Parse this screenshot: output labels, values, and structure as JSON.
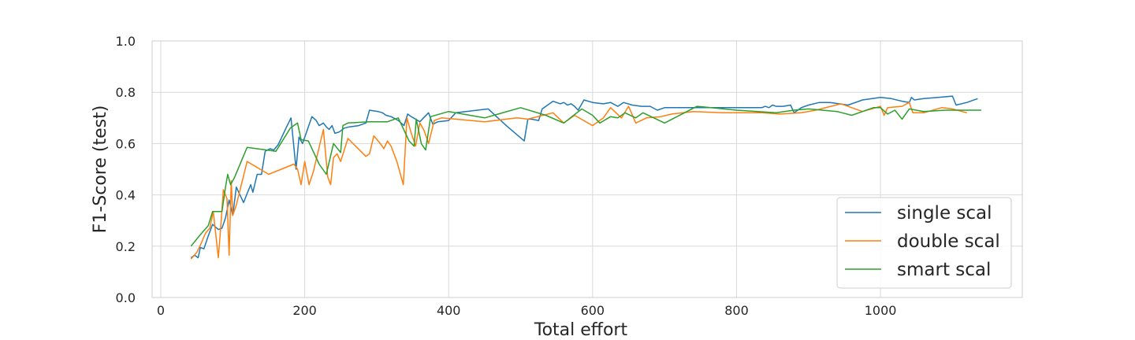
{
  "chart_data": {
    "type": "line",
    "title": "",
    "xlabel": "Total effort",
    "ylabel": "F1-Score (test)",
    "xlim": [
      -12,
      1197
    ],
    "ylim": [
      0.0,
      1.0
    ],
    "xticks": [
      0,
      200,
      400,
      600,
      800,
      1000
    ],
    "yticks": [
      0.0,
      0.2,
      0.4,
      0.6,
      0.8,
      1.0
    ],
    "xtick_labels": [
      "0",
      "200",
      "400",
      "600",
      "800",
      "1000"
    ],
    "ytick_labels": [
      "0.0",
      "0.2",
      "0.4",
      "0.6",
      "0.8",
      "1.0"
    ],
    "grid": true,
    "legend_position": "lower-right",
    "series": [
      {
        "name": "single scal",
        "color": "#1f77b4",
        "points": [
          [
            42,
            0.155
          ],
          [
            47,
            0.165
          ],
          [
            52,
            0.155
          ],
          [
            55,
            0.195
          ],
          [
            60,
            0.19
          ],
          [
            66,
            0.24
          ],
          [
            72,
            0.285
          ],
          [
            76,
            0.275
          ],
          [
            80,
            0.265
          ],
          [
            85,
            0.27
          ],
          [
            90,
            0.31
          ],
          [
            95,
            0.38
          ],
          [
            100,
            0.32
          ],
          [
            105,
            0.43
          ],
          [
            110,
            0.4
          ],
          [
            115,
            0.37
          ],
          [
            120,
            0.405
          ],
          [
            125,
            0.44
          ],
          [
            128,
            0.41
          ],
          [
            134,
            0.48
          ],
          [
            140,
            0.48
          ],
          [
            145,
            0.57
          ],
          [
            152,
            0.58
          ],
          [
            157,
            0.575
          ],
          [
            163,
            0.595
          ],
          [
            169,
            0.63
          ],
          [
            174,
            0.66
          ],
          [
            181,
            0.7
          ],
          [
            188,
            0.5
          ],
          [
            192,
            0.625
          ],
          [
            197,
            0.6
          ],
          [
            202,
            0.64
          ],
          [
            210,
            0.705
          ],
          [
            216,
            0.69
          ],
          [
            220,
            0.67
          ],
          [
            226,
            0.68
          ],
          [
            230,
            0.665
          ],
          [
            234,
            0.655
          ],
          [
            238,
            0.67
          ],
          [
            242,
            0.64
          ],
          [
            248,
            0.645
          ],
          [
            255,
            0.66
          ],
          [
            262,
            0.665
          ],
          [
            275,
            0.67
          ],
          [
            285,
            0.68
          ],
          [
            290,
            0.73
          ],
          [
            302,
            0.725
          ],
          [
            308,
            0.72
          ],
          [
            313,
            0.71
          ],
          [
            320,
            0.705
          ],
          [
            330,
            0.69
          ],
          [
            338,
            0.67
          ],
          [
            343,
            0.715
          ],
          [
            348,
            0.705
          ],
          [
            354,
            0.695
          ],
          [
            360,
            0.685
          ],
          [
            365,
            0.7
          ],
          [
            372,
            0.72
          ],
          [
            378,
            0.675
          ],
          [
            385,
            0.685
          ],
          [
            400,
            0.69
          ],
          [
            410,
            0.72
          ],
          [
            440,
            0.73
          ],
          [
            455,
            0.735
          ],
          [
            480,
            0.67
          ],
          [
            505,
            0.61
          ],
          [
            510,
            0.695
          ],
          [
            515,
            0.695
          ],
          [
            525,
            0.69
          ],
          [
            530,
            0.735
          ],
          [
            540,
            0.755
          ],
          [
            545,
            0.765
          ],
          [
            555,
            0.755
          ],
          [
            560,
            0.76
          ],
          [
            565,
            0.75
          ],
          [
            570,
            0.755
          ],
          [
            575,
            0.745
          ],
          [
            580,
            0.73
          ],
          [
            588,
            0.77
          ],
          [
            600,
            0.76
          ],
          [
            615,
            0.755
          ],
          [
            625,
            0.76
          ],
          [
            635,
            0.745
          ],
          [
            643,
            0.76
          ],
          [
            655,
            0.75
          ],
          [
            668,
            0.745
          ],
          [
            680,
            0.745
          ],
          [
            690,
            0.73
          ],
          [
            700,
            0.74
          ],
          [
            750,
            0.74
          ],
          [
            800,
            0.74
          ],
          [
            835,
            0.74
          ],
          [
            840,
            0.745
          ],
          [
            845,
            0.74
          ],
          [
            850,
            0.75
          ],
          [
            855,
            0.745
          ],
          [
            865,
            0.745
          ],
          [
            875,
            0.75
          ],
          [
            880,
            0.72
          ],
          [
            890,
            0.74
          ],
          [
            900,
            0.75
          ],
          [
            915,
            0.76
          ],
          [
            930,
            0.76
          ],
          [
            955,
            0.75
          ],
          [
            975,
            0.77
          ],
          [
            1000,
            0.78
          ],
          [
            1015,
            0.775
          ],
          [
            1030,
            0.765
          ],
          [
            1040,
            0.76
          ],
          [
            1043,
            0.78
          ],
          [
            1047,
            0.77
          ],
          [
            1060,
            0.775
          ],
          [
            1080,
            0.78
          ],
          [
            1100,
            0.785
          ],
          [
            1105,
            0.75
          ],
          [
            1120,
            0.76
          ],
          [
            1135,
            0.775
          ]
        ]
      },
      {
        "name": "double scal",
        "color": "#ff7f0e",
        "points": [
          [
            42,
            0.15
          ],
          [
            50,
            0.175
          ],
          [
            56,
            0.21
          ],
          [
            62,
            0.25
          ],
          [
            68,
            0.27
          ],
          [
            73,
            0.335
          ],
          [
            80,
            0.155
          ],
          [
            83,
            0.26
          ],
          [
            87,
            0.42
          ],
          [
            92,
            0.385
          ],
          [
            95,
            0.165
          ],
          [
            98,
            0.455
          ],
          [
            100,
            0.32
          ],
          [
            105,
            0.36
          ],
          [
            120,
            0.53
          ],
          [
            150,
            0.48
          ],
          [
            185,
            0.52
          ],
          [
            190,
            0.5
          ],
          [
            195,
            0.44
          ],
          [
            200,
            0.53
          ],
          [
            206,
            0.44
          ],
          [
            212,
            0.49
          ],
          [
            226,
            0.655
          ],
          [
            232,
            0.47
          ],
          [
            236,
            0.44
          ],
          [
            240,
            0.545
          ],
          [
            245,
            0.56
          ],
          [
            250,
            0.53
          ],
          [
            260,
            0.62
          ],
          [
            285,
            0.55
          ],
          [
            290,
            0.56
          ],
          [
            296,
            0.63
          ],
          [
            305,
            0.6
          ],
          [
            310,
            0.58
          ],
          [
            315,
            0.61
          ],
          [
            320,
            0.59
          ],
          [
            328,
            0.53
          ],
          [
            337,
            0.44
          ],
          [
            342,
            0.7
          ],
          [
            347,
            0.65
          ],
          [
            354,
            0.59
          ],
          [
            360,
            0.68
          ],
          [
            366,
            0.65
          ],
          [
            372,
            0.6
          ],
          [
            380,
            0.69
          ],
          [
            390,
            0.7
          ],
          [
            410,
            0.695
          ],
          [
            450,
            0.685
          ],
          [
            495,
            0.7
          ],
          [
            510,
            0.695
          ],
          [
            545,
            0.72
          ],
          [
            560,
            0.68
          ],
          [
            575,
            0.71
          ],
          [
            600,
            0.67
          ],
          [
            615,
            0.7
          ],
          [
            625,
            0.74
          ],
          [
            640,
            0.7
          ],
          [
            650,
            0.745
          ],
          [
            660,
            0.68
          ],
          [
            675,
            0.7
          ],
          [
            695,
            0.705
          ],
          [
            710,
            0.715
          ],
          [
            740,
            0.725
          ],
          [
            780,
            0.72
          ],
          [
            835,
            0.72
          ],
          [
            860,
            0.715
          ],
          [
            890,
            0.72
          ],
          [
            910,
            0.73
          ],
          [
            945,
            0.755
          ],
          [
            960,
            0.74
          ],
          [
            975,
            0.725
          ],
          [
            1000,
            0.745
          ],
          [
            1005,
            0.71
          ],
          [
            1010,
            0.74
          ],
          [
            1030,
            0.745
          ],
          [
            1040,
            0.76
          ],
          [
            1045,
            0.72
          ],
          [
            1060,
            0.72
          ],
          [
            1085,
            0.74
          ],
          [
            1100,
            0.735
          ],
          [
            1120,
            0.72
          ]
        ]
      },
      {
        "name": "smart scal",
        "color": "#2ca02c",
        "points": [
          [
            42,
            0.2
          ],
          [
            55,
            0.245
          ],
          [
            66,
            0.28
          ],
          [
            72,
            0.335
          ],
          [
            85,
            0.335
          ],
          [
            90,
            0.43
          ],
          [
            93,
            0.48
          ],
          [
            97,
            0.44
          ],
          [
            102,
            0.465
          ],
          [
            120,
            0.585
          ],
          [
            160,
            0.57
          ],
          [
            180,
            0.66
          ],
          [
            190,
            0.68
          ],
          [
            195,
            0.615
          ],
          [
            205,
            0.61
          ],
          [
            220,
            0.52
          ],
          [
            230,
            0.48
          ],
          [
            240,
            0.6
          ],
          [
            250,
            0.565
          ],
          [
            253,
            0.67
          ],
          [
            260,
            0.68
          ],
          [
            290,
            0.685
          ],
          [
            315,
            0.685
          ],
          [
            330,
            0.7
          ],
          [
            345,
            0.61
          ],
          [
            352,
            0.59
          ],
          [
            355,
            0.695
          ],
          [
            362,
            0.6
          ],
          [
            368,
            0.575
          ],
          [
            375,
            0.705
          ],
          [
            400,
            0.725
          ],
          [
            450,
            0.7
          ],
          [
            500,
            0.74
          ],
          [
            535,
            0.71
          ],
          [
            560,
            0.68
          ],
          [
            585,
            0.735
          ],
          [
            600,
            0.71
          ],
          [
            610,
            0.68
          ],
          [
            625,
            0.705
          ],
          [
            635,
            0.7
          ],
          [
            645,
            0.72
          ],
          [
            660,
            0.7
          ],
          [
            670,
            0.72
          ],
          [
            700,
            0.68
          ],
          [
            745,
            0.745
          ],
          [
            800,
            0.73
          ],
          [
            855,
            0.72
          ],
          [
            880,
            0.73
          ],
          [
            900,
            0.735
          ],
          [
            940,
            0.725
          ],
          [
            960,
            0.71
          ],
          [
            975,
            0.725
          ],
          [
            990,
            0.74
          ],
          [
            1000,
            0.74
          ],
          [
            1010,
            0.715
          ],
          [
            1020,
            0.73
          ],
          [
            1030,
            0.695
          ],
          [
            1040,
            0.735
          ],
          [
            1060,
            0.725
          ],
          [
            1090,
            0.73
          ],
          [
            1140,
            0.73
          ]
        ]
      }
    ]
  }
}
